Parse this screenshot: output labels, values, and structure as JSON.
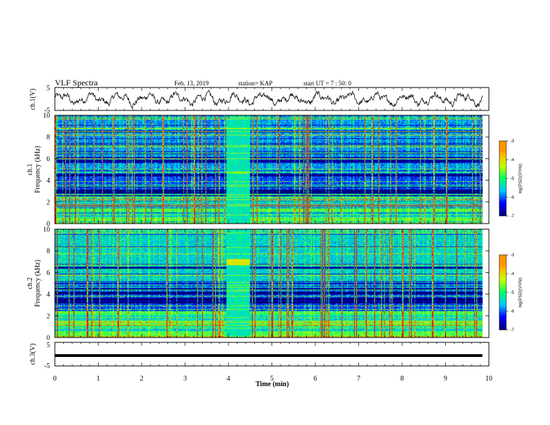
{
  "header": {
    "title": "VLF Spectra",
    "date": "Feb. 13, 2019",
    "station": "station= KAP",
    "start": "start  UT =  7 : 50: 0"
  },
  "chart_data": [
    {
      "type": "line",
      "name": "ch1-waveform",
      "ylabel": "ch.1(V)",
      "ylim": [
        -5,
        5
      ],
      "yticks": [
        "5",
        "-5"
      ],
      "xlim": [
        0,
        10
      ],
      "trace_end_min": 9.85,
      "color": "#000000"
    },
    {
      "type": "heatmap",
      "name": "ch1-spectrogram",
      "ylabel_line1": "ch.1",
      "ylabel_line2": "Frequency  (kHz)",
      "ylim": [
        0,
        10
      ],
      "yticks": [
        "0",
        "2",
        "4",
        "6",
        "8",
        "10"
      ],
      "xlim": [
        0,
        10
      ],
      "data_end_min": 9.85,
      "burst_interval_min": [
        3.95,
        4.5
      ],
      "colorbar": {
        "label": "log(PSD)(V²/Hz)",
        "ticks": [
          "-3",
          "-4",
          "-5",
          "-6",
          "-7"
        ],
        "range": [
          -7,
          -3
        ]
      }
    },
    {
      "type": "heatmap",
      "name": "ch2-spectrogram",
      "ylabel_line1": "ch.2",
      "ylabel_line2": "Frequency  (kHz)",
      "ylim": [
        0,
        10
      ],
      "yticks": [
        "0",
        "2",
        "4",
        "6",
        "8",
        "10"
      ],
      "xlim": [
        0,
        10
      ],
      "data_end_min": 9.85,
      "burst_interval_min": [
        3.95,
        4.5
      ],
      "colorbar": {
        "label": "log(PSD)(V²/Hz)",
        "ticks": [
          "-3",
          "-4",
          "-5",
          "-6",
          "-7"
        ],
        "range": [
          -7,
          -3
        ]
      }
    },
    {
      "type": "line",
      "name": "ch3-waveform",
      "ylabel": "ch.3(V)",
      "ylim": [
        -5,
        5
      ],
      "yticks": [
        "5",
        "-5"
      ],
      "xlim": [
        0,
        10
      ],
      "trace_end_min": 9.85,
      "constant_value": -0.6,
      "color": "#000000"
    }
  ],
  "x_axis": {
    "label": "Time  (min)",
    "ticks": [
      "0",
      "1",
      "2",
      "3",
      "4",
      "5",
      "6",
      "7",
      "8",
      "9",
      "10"
    ],
    "range": [
      0,
      10
    ]
  },
  "colormap": [
    "#00007a",
    "#0000ff",
    "#00c8ff",
    "#00ff64",
    "#c8ff00",
    "#ffb400",
    "#ff0000",
    "#ffffff"
  ]
}
